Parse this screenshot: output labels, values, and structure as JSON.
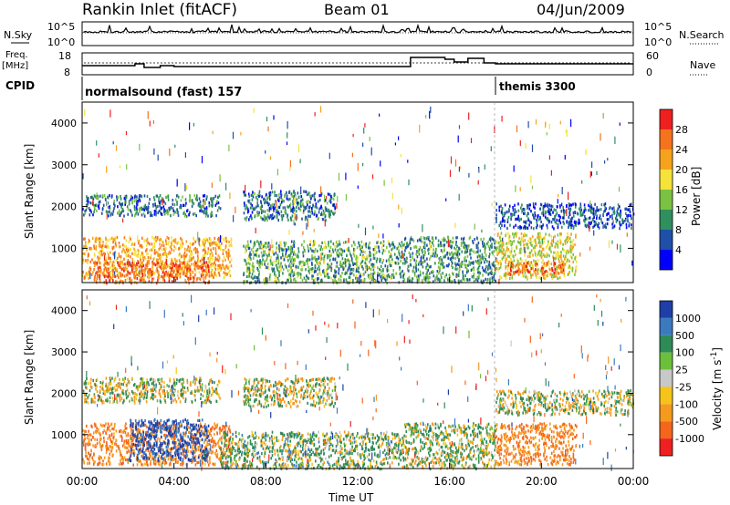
{
  "header": {
    "title": "Rankin Inlet (fitACF)",
    "beam": "Beam 01",
    "date": "04/Jun/2009"
  },
  "top_panels": {
    "nsky_label": "N.Sky",
    "nsearch_label": "N.Search",
    "noise_ticks_left": [
      "10^5",
      "10^0"
    ],
    "noise_ticks_right": [
      "10^5",
      "10^0"
    ],
    "freq_label": "Freq.",
    "freq_unit": "[MHz]",
    "freq_ticks": [
      "18",
      "8"
    ],
    "nave_label": "Nave",
    "nave_ticks": [
      "60",
      "0"
    ],
    "cpid_label": "CPID",
    "cpid_modes": [
      {
        "name": "normalsound (fast) 157",
        "start_hour": 0
      },
      {
        "name": "themis 3300",
        "start_hour": 18
      }
    ]
  },
  "x_axis": {
    "label": "Time UT",
    "ticks": [
      "00:00",
      "04:00",
      "08:00",
      "12:00",
      "16:00",
      "20:00",
      "00:00"
    ],
    "range_hours": [
      0,
      24
    ]
  },
  "y_axis": {
    "label": "Slant Range [km]",
    "ticks": [
      "1000",
      "2000",
      "3000",
      "4000"
    ],
    "range_km": [
      180,
      4500
    ]
  },
  "power_scale": {
    "label": "Power [dB]",
    "ticks": [
      "4",
      "8",
      "12",
      "16",
      "20",
      "24",
      "28"
    ],
    "colors": [
      "#0000ff",
      "#1f4fa8",
      "#2f8f5f",
      "#7cc242",
      "#f5e23a",
      "#f7a21c",
      "#f5731d",
      "#ee2020"
    ]
  },
  "velocity_scale": {
    "label": "Velocity [m s",
    "label_exp": "-1",
    "label_close": "]",
    "ticks": [
      "1000",
      "500",
      "100",
      "25",
      "-25",
      "-100",
      "-500",
      "-1000"
    ],
    "colors": [
      "#1f3fa8",
      "#3c7ac0",
      "#2e8b57",
      "#6cbf3a",
      "#c8c8c8",
      "#f5c419",
      "#f59a1d",
      "#f5661d",
      "#ee2020"
    ]
  },
  "chart_data": [
    {
      "type": "heatmap",
      "title": "Power [dB]",
      "xlabel": "Time UT",
      "ylabel": "Slant Range [km]",
      "xlim": [
        0,
        24
      ],
      "ylim": [
        180,
        4500
      ],
      "color_range": [
        0,
        32
      ],
      "features": [
        {
          "t_start": 0.0,
          "t_end": 6.5,
          "r_start": 300,
          "r_end": 1300,
          "value": 22
        },
        {
          "t_start": 0.0,
          "t_end": 6.0,
          "r_start": 1800,
          "r_end": 2300,
          "value": 8
        },
        {
          "t_start": 0.5,
          "t_end": 5.5,
          "r_start": 200,
          "r_end": 700,
          "value": 26
        },
        {
          "t_start": 7.0,
          "t_end": 11.0,
          "r_start": 1700,
          "r_end": 2400,
          "value": 8
        },
        {
          "t_start": 7.0,
          "t_end": 14.0,
          "r_start": 200,
          "r_end": 1200,
          "value": 12
        },
        {
          "t_start": 14.0,
          "t_end": 18.0,
          "r_start": 200,
          "r_end": 1300,
          "value": 10
        },
        {
          "t_start": 18.0,
          "t_end": 21.5,
          "r_start": 300,
          "r_end": 1400,
          "value": 18
        },
        {
          "t_start": 18.5,
          "t_end": 21.0,
          "r_start": 400,
          "r_end": 700,
          "value": 26
        },
        {
          "t_start": 18.0,
          "t_end": 24.0,
          "r_start": 1500,
          "r_end": 2100,
          "value": 6
        }
      ]
    },
    {
      "type": "heatmap",
      "title": "Velocity [m s-1]",
      "xlabel": "Time UT",
      "ylabel": "Slant Range [km]",
      "xlim": [
        0,
        24
      ],
      "ylim": [
        180,
        4500
      ],
      "color_range": [
        -1000,
        1000
      ],
      "features": [
        {
          "t_start": 0.0,
          "t_end": 6.5,
          "r_start": 300,
          "r_end": 1300,
          "value": -300
        },
        {
          "t_start": 0.0,
          "t_end": 6.0,
          "r_start": 1800,
          "r_end": 2400,
          "value": 0
        },
        {
          "t_start": 2.0,
          "t_end": 5.5,
          "r_start": 400,
          "r_end": 1400,
          "value": 800
        },
        {
          "t_start": 7.0,
          "t_end": 11.0,
          "r_start": 1700,
          "r_end": 2400,
          "value": 0
        },
        {
          "t_start": 6.0,
          "t_end": 14.0,
          "r_start": 200,
          "r_end": 1100,
          "value": 100
        },
        {
          "t_start": 14.0,
          "t_end": 18.0,
          "r_start": 200,
          "r_end": 1300,
          "value": 50
        },
        {
          "t_start": 18.0,
          "t_end": 21.5,
          "r_start": 300,
          "r_end": 1300,
          "value": -300
        },
        {
          "t_start": 18.0,
          "t_end": 24.0,
          "r_start": 1500,
          "r_end": 2100,
          "value": 0
        }
      ]
    }
  ]
}
